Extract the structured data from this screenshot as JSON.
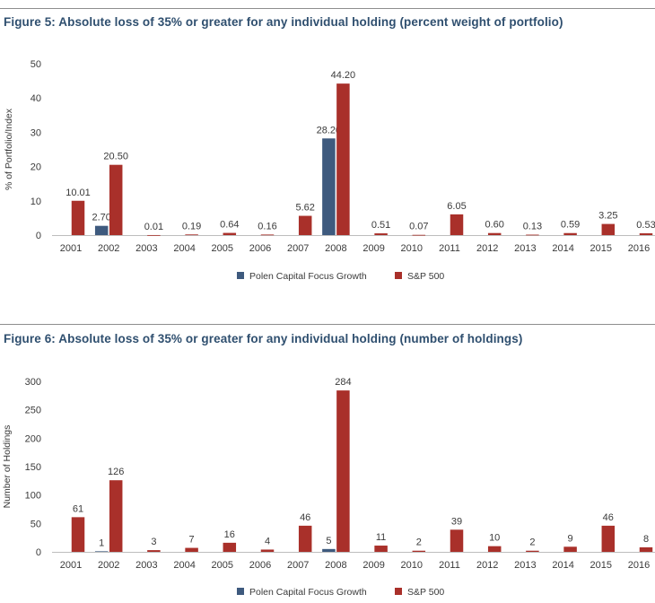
{
  "colors": {
    "series1": "#3e5a7e",
    "series2": "#a9302a",
    "title": "#2f4f6f",
    "axis": "#bdbdbd"
  },
  "figures": [
    {
      "title": "Figure 5: Absolute loss of 35% or greater for any individual holding (percent weight of portfolio)"
    },
    {
      "title": "Figure 6: Absolute loss of 35% or greater for any individual holding (number of holdings)"
    }
  ],
  "chart_data": [
    {
      "type": "bar",
      "title": "Figure 5: Absolute loss of 35% or greater for any individual holding (percent weight of portfolio)",
      "xlabel": "",
      "ylabel": "% of Portfolio/Index",
      "ylim": [
        0,
        50
      ],
      "yticks": [
        "0",
        "10",
        "20",
        "30",
        "40",
        "50"
      ],
      "categories": [
        "2001",
        "2002",
        "2003",
        "2004",
        "2005",
        "2006",
        "2007",
        "2008",
        "2009",
        "2010",
        "2011",
        "2012",
        "2013",
        "2014",
        "2015",
        "2016"
      ],
      "series": [
        {
          "name": "Polen Capital Focus Growth",
          "values": [
            null,
            2.7,
            null,
            null,
            null,
            null,
            null,
            28.2,
            null,
            null,
            null,
            null,
            null,
            null,
            null,
            null
          ],
          "labels": [
            "",
            "2.70",
            "",
            "",
            "",
            "",
            "",
            "28.20",
            "",
            "",
            "",
            "",
            "",
            "",
            "",
            ""
          ]
        },
        {
          "name": "S&P 500",
          "values": [
            10.01,
            20.5,
            0.01,
            0.19,
            0.64,
            0.16,
            5.62,
            44.2,
            0.51,
            0.07,
            6.05,
            0.6,
            0.13,
            0.59,
            3.25,
            0.53
          ],
          "labels": [
            "10.01",
            "20.50",
            "0.01",
            "0.19",
            "0.64",
            "0.16",
            "5.62",
            "44.20",
            "0.51",
            "0.07",
            "6.05",
            "0.60",
            "0.13",
            "0.59",
            "3.25",
            "0.53"
          ]
        }
      ],
      "legend": "bottom-center",
      "grid": false
    },
    {
      "type": "bar",
      "title": "Figure 6: Absolute loss of 35% or greater for any individual holding (number of holdings)",
      "xlabel": "",
      "ylabel": "Number of Holdings",
      "ylim": [
        0,
        300
      ],
      "yticks": [
        "0",
        "50",
        "100",
        "150",
        "200",
        "250",
        "300"
      ],
      "categories": [
        "2001",
        "2002",
        "2003",
        "2004",
        "2005",
        "2006",
        "2007",
        "2008",
        "2009",
        "2010",
        "2011",
        "2012",
        "2013",
        "2014",
        "2015",
        "2016"
      ],
      "series": [
        {
          "name": "Polen Capital Focus Growth",
          "values": [
            null,
            1,
            null,
            null,
            null,
            null,
            null,
            5,
            null,
            null,
            null,
            null,
            null,
            null,
            null,
            null
          ],
          "labels": [
            "",
            "1",
            "",
            "",
            "",
            "",
            "",
            "5",
            "",
            "",
            "",
            "",
            "",
            "",
            "",
            ""
          ]
        },
        {
          "name": "S&P 500",
          "values": [
            61,
            126,
            3,
            7,
            16,
            4,
            46,
            284,
            11,
            2,
            39,
            10,
            2,
            9,
            46,
            8
          ],
          "labels": [
            "61",
            "126",
            "3",
            "7",
            "16",
            "4",
            "46",
            "284",
            "11",
            "2",
            "39",
            "10",
            "2",
            "9",
            "46",
            "8"
          ]
        }
      ],
      "legend": "bottom-center",
      "grid": false
    }
  ]
}
